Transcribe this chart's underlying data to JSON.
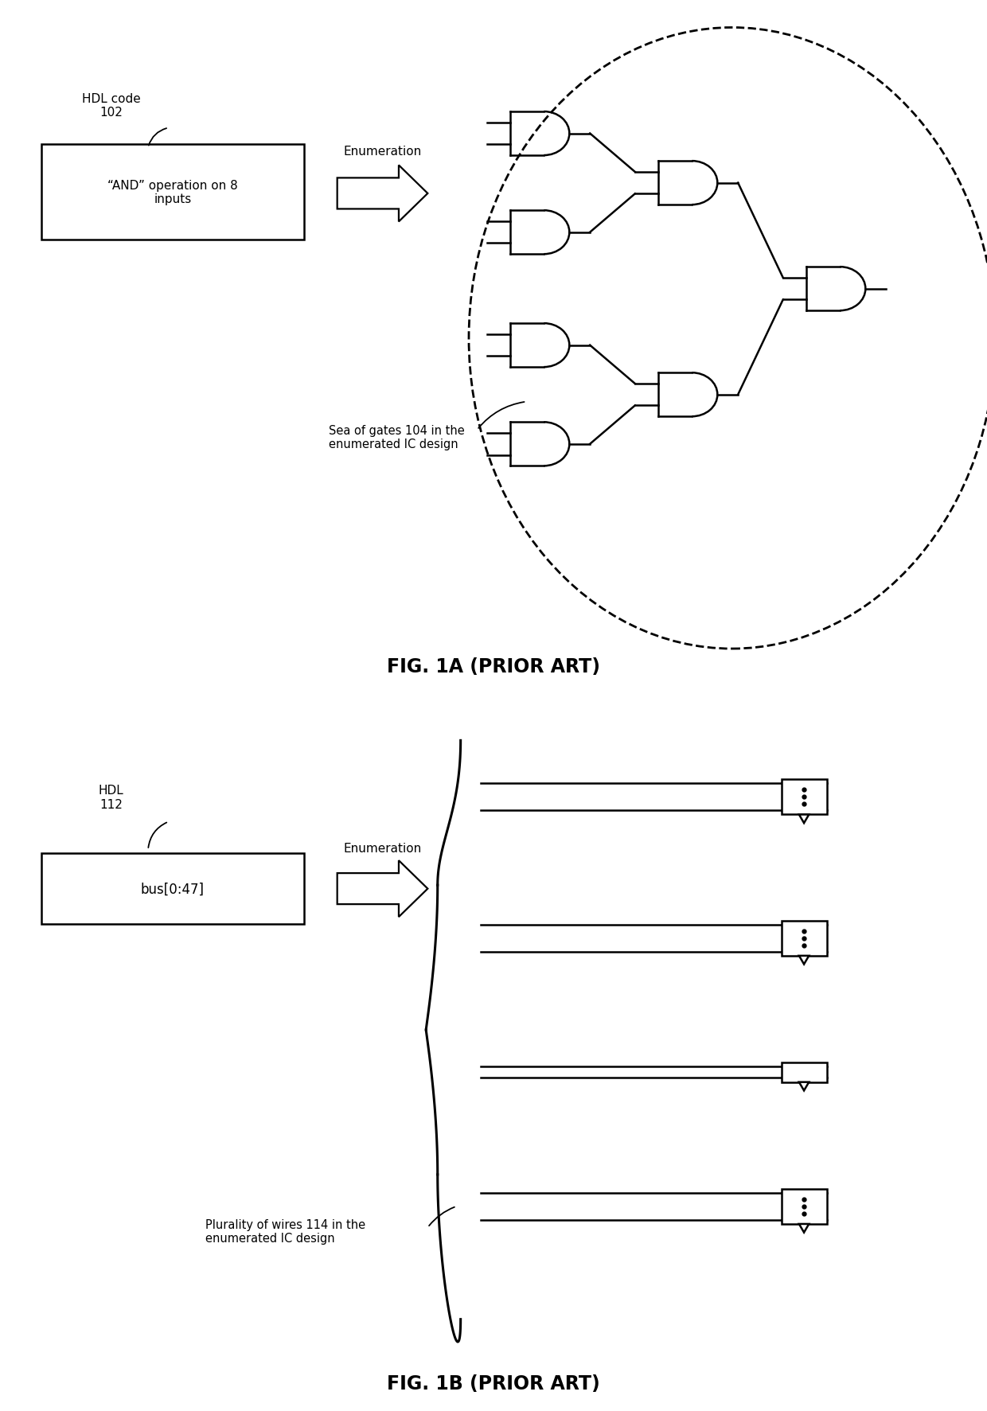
{
  "bg_color": "#ffffff",
  "fig1a_title": "FIG. 1A (PRIOR ART)",
  "fig1b_title": "FIG. 1B (PRIOR ART)",
  "hdl_code_label": "HDL code\n102",
  "hdl_label": "HDL\n112",
  "box1_text": "“AND” operation on 8\ninputs",
  "box2_text": "bus[0:47]",
  "enumeration_text": "Enumeration",
  "sea_of_gates_text": "Sea of gates 104 in the\nenumerated IC design",
  "plurality_text": "Plurality of wires 114 in the\nenumerated IC design",
  "line_color": "#000000",
  "text_color": "#000000",
  "fig1a_ylim": [
    0,
    10
  ],
  "fig1b_ylim": [
    0,
    10
  ],
  "fig1a_xlim": [
    0,
    12
  ],
  "fig1b_xlim": [
    0,
    12
  ]
}
